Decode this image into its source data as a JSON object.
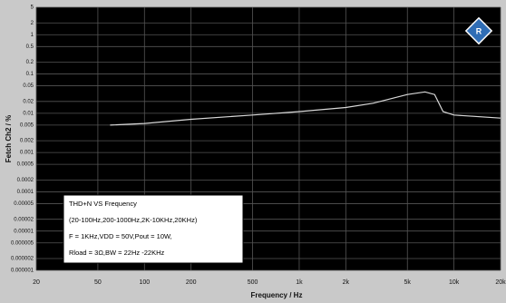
{
  "chart_data": {
    "type": "line",
    "x_label": "Frequency / Hz",
    "y_label": "Fetch Ch2 / %",
    "x_log": true,
    "y_log": true,
    "grid": true,
    "xlim": [
      20,
      20000
    ],
    "xticks": [
      20,
      50,
      100,
      200,
      500,
      {
        "value": 1000,
        "label": "1k"
      },
      {
        "value": 2000,
        "label": "2k"
      },
      {
        "value": 5000,
        "label": "5k"
      },
      {
        "value": 10000,
        "label": "10k"
      },
      {
        "value": 20000,
        "label": "20k"
      }
    ],
    "ylim": [
      1e-06,
      5
    ],
    "yticks": [
      5,
      2,
      1,
      0.5,
      0.2,
      0.1,
      0.05,
      0.02,
      0.01,
      0.005,
      0.002,
      0.001,
      0.0005,
      0.0002,
      0.0001,
      5e-05,
      2e-05,
      1e-05,
      5e-06,
      2e-06,
      1e-06
    ],
    "series": [
      {
        "color": "#d8d8d8",
        "x": [
          60,
          100,
          200,
          500,
          1000,
          2000,
          3000,
          5000,
          6500,
          7500,
          8500,
          10000,
          20000
        ],
        "values": [
          0.005,
          0.0055,
          0.007,
          0.009,
          0.011,
          0.014,
          0.018,
          0.03,
          0.035,
          0.03,
          0.011,
          0.009,
          0.0075
        ]
      }
    ],
    "annotation": [
      "THD+N VS  Frequency",
      "(20-100Hz,200-1000Hz,2K-10KHz,20KHz)",
      "F = 1KHz,VDD = 50V,Pout = 10W,",
      "Rload = 3Ω,BW = 22Hz -22KHz"
    ]
  }
}
